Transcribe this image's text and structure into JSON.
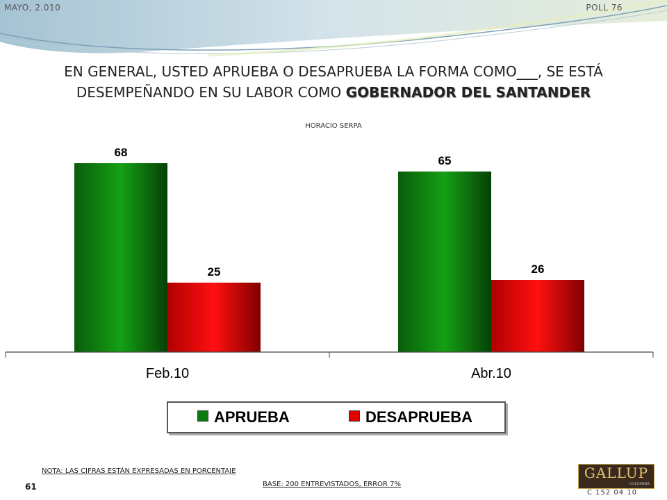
{
  "header": {
    "date": "MAYO, 2.010",
    "poll": "POLL 76"
  },
  "title": {
    "line1": "EN GENERAL, USTED APRUEBA O DESAPRUEBA LA FORMA COMO___, SE ESTÁ",
    "line2_prefix": "DESEMPEÑANDO EN SU LABOR COMO ",
    "line2_bold": "GOBERNADOR DEL SANTANDER"
  },
  "subtitle": "HORACIO SERPA",
  "chart_data": {
    "type": "bar",
    "title": "HORACIO SERPA",
    "categories": [
      "Feb.10",
      "Abr.10"
    ],
    "series": [
      {
        "name": "APRUEBA",
        "values": [
          68,
          65
        ],
        "color": "#0d7a0d"
      },
      {
        "name": "DESAPRUEBA",
        "values": [
          25,
          26
        ],
        "color": "#e00000"
      }
    ],
    "ylim": [
      0,
      80
    ],
    "grid": false,
    "legend": "bottom",
    "data_labels": true
  },
  "footer": {
    "note": "NOTA: LAS CIFRAS ESTÁN EXPRESADAS EN PORCENTAJE",
    "base": "BASE: 200 ENTREVISTADOS, ERROR 7%",
    "page": "61",
    "code": "C 152 04 10",
    "logo": "GALLUP",
    "logo_sub": "COLOMBIA"
  }
}
